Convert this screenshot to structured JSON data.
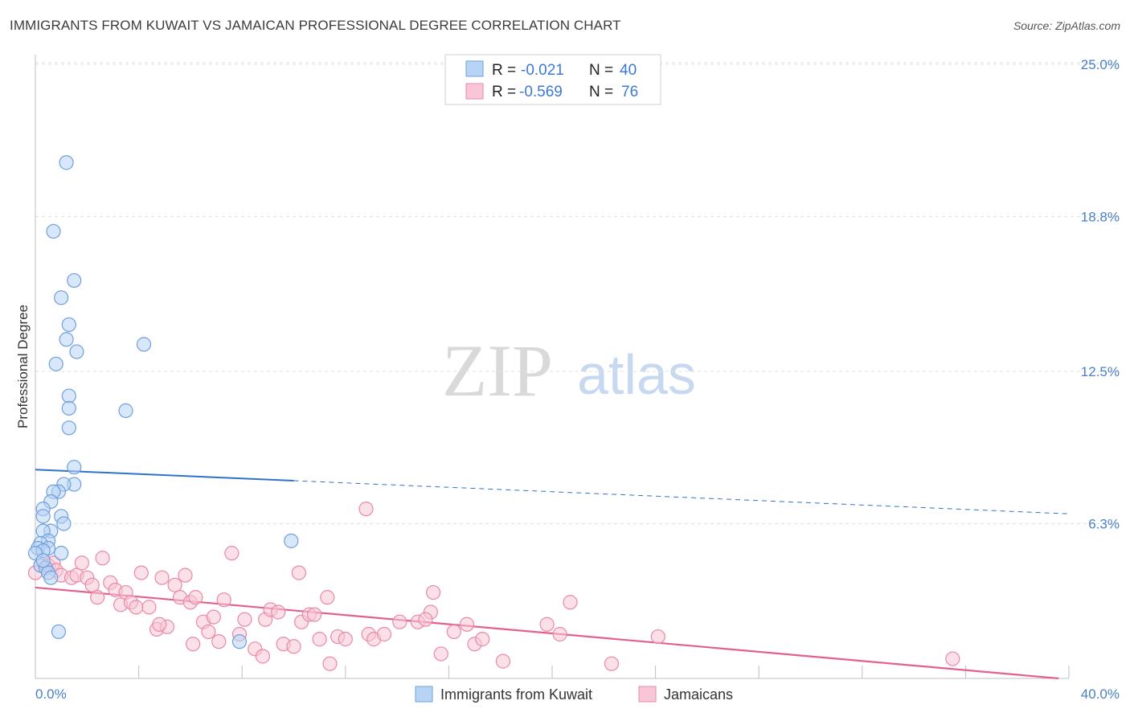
{
  "title": "IMMIGRANTS FROM KUWAIT VS JAMAICAN PROFESSIONAL DEGREE CORRELATION CHART",
  "source": "Source: ZipAtlas.com",
  "watermark": {
    "zip": "ZIP",
    "atlas": "atlas"
  },
  "chart_data": {
    "type": "scatter",
    "xlabel": "",
    "ylabel": "Professional Degree",
    "xlim": [
      0,
      40
    ],
    "ylim": [
      0,
      25
    ],
    "x_tick_labels": {
      "min": "0.0%",
      "max": "40.0%"
    },
    "y_ticks": [
      {
        "value": 6.3,
        "label": "6.3%"
      },
      {
        "value": 12.5,
        "label": "12.5%"
      },
      {
        "value": 18.8,
        "label": "18.8%"
      },
      {
        "value": 25.0,
        "label": "25.0%"
      }
    ],
    "grid": true,
    "legend_position": "top-center",
    "colors": {
      "kuwait_fill": "#b8d4f4",
      "kuwait_stroke": "#6fa0dc",
      "kuwait_line": "#2f72cc",
      "jamaica_fill": "#f8c6d6",
      "jamaica_stroke": "#e889a8",
      "jamaica_line": "#e2608e"
    },
    "series": [
      {
        "name": "Immigrants from Kuwait",
        "r_label": "R =",
        "r_value": "-0.021",
        "n_label": "N =",
        "n_value": "40",
        "trend": {
          "x0": 0,
          "y0": 8.5,
          "x1": 10,
          "y1": 8.05,
          "x_dash_end": 40,
          "y_dash_end": 6.7
        },
        "points": [
          [
            1.2,
            21.0
          ],
          [
            0.7,
            18.2
          ],
          [
            1.5,
            16.2
          ],
          [
            1.0,
            15.5
          ],
          [
            1.3,
            14.4
          ],
          [
            1.2,
            13.8
          ],
          [
            4.2,
            13.6
          ],
          [
            1.6,
            13.3
          ],
          [
            0.8,
            12.8
          ],
          [
            1.3,
            11.5
          ],
          [
            1.3,
            11.0
          ],
          [
            3.5,
            10.9
          ],
          [
            1.3,
            10.2
          ],
          [
            1.5,
            8.6
          ],
          [
            1.5,
            7.9
          ],
          [
            1.1,
            7.9
          ],
          [
            0.9,
            7.6
          ],
          [
            0.7,
            7.6
          ],
          [
            0.6,
            7.2
          ],
          [
            0.3,
            6.9
          ],
          [
            0.3,
            6.6
          ],
          [
            1.0,
            6.6
          ],
          [
            1.1,
            6.3
          ],
          [
            0.6,
            6.0
          ],
          [
            0.3,
            6.0
          ],
          [
            0.5,
            5.6
          ],
          [
            0.2,
            5.5
          ],
          [
            0.1,
            5.3
          ],
          [
            0.5,
            5.3
          ],
          [
            0.3,
            5.2
          ],
          [
            0.0,
            5.1
          ],
          [
            1.0,
            5.1
          ],
          [
            0.2,
            4.6
          ],
          [
            0.4,
            4.5
          ],
          [
            0.5,
            4.3
          ],
          [
            0.6,
            4.1
          ],
          [
            9.9,
            5.6
          ],
          [
            7.9,
            1.5
          ],
          [
            0.9,
            1.9
          ],
          [
            0.3,
            4.8
          ]
        ]
      },
      {
        "name": "Jamaicans",
        "r_label": "R =",
        "r_value": "-0.569",
        "n_label": "N =",
        "n_value": "76",
        "trend": {
          "x0": 0,
          "y0": 3.7,
          "x1": 39.6,
          "y1": 0.0
        },
        "points": [
          [
            0.0,
            4.3
          ],
          [
            0.3,
            4.8
          ],
          [
            0.5,
            4.6
          ],
          [
            0.7,
            4.7
          ],
          [
            0.8,
            4.4
          ],
          [
            1.0,
            4.2
          ],
          [
            1.4,
            4.1
          ],
          [
            1.6,
            4.2
          ],
          [
            1.8,
            4.7
          ],
          [
            2.0,
            4.1
          ],
          [
            2.2,
            3.8
          ],
          [
            2.4,
            3.3
          ],
          [
            2.6,
            4.9
          ],
          [
            2.9,
            3.9
          ],
          [
            3.1,
            3.6
          ],
          [
            3.3,
            3.0
          ],
          [
            3.5,
            3.5
          ],
          [
            3.7,
            3.1
          ],
          [
            3.9,
            2.9
          ],
          [
            4.1,
            4.3
          ],
          [
            4.4,
            2.9
          ],
          [
            4.7,
            2.0
          ],
          [
            4.9,
            4.1
          ],
          [
            5.1,
            2.1
          ],
          [
            5.4,
            3.8
          ],
          [
            5.6,
            3.3
          ],
          [
            5.8,
            4.2
          ],
          [
            6.0,
            3.1
          ],
          [
            6.2,
            3.3
          ],
          [
            6.5,
            2.3
          ],
          [
            6.7,
            1.9
          ],
          [
            6.9,
            2.5
          ],
          [
            7.1,
            1.5
          ],
          [
            7.3,
            3.2
          ],
          [
            7.6,
            5.1
          ],
          [
            7.9,
            1.8
          ],
          [
            8.1,
            2.4
          ],
          [
            8.5,
            1.2
          ],
          [
            8.9,
            2.4
          ],
          [
            9.1,
            2.8
          ],
          [
            9.4,
            2.7
          ],
          [
            9.6,
            1.4
          ],
          [
            10.0,
            1.3
          ],
          [
            10.3,
            2.3
          ],
          [
            10.6,
            2.6
          ],
          [
            10.8,
            2.6
          ],
          [
            11.0,
            1.6
          ],
          [
            11.3,
            3.3
          ],
          [
            11.7,
            1.7
          ],
          [
            12.0,
            1.6
          ],
          [
            12.9,
            1.8
          ],
          [
            13.1,
            1.6
          ],
          [
            13.5,
            1.8
          ],
          [
            14.1,
            2.3
          ],
          [
            14.8,
            2.3
          ],
          [
            15.3,
            2.7
          ],
          [
            15.4,
            3.5
          ],
          [
            15.7,
            1.0
          ],
          [
            16.2,
            1.9
          ],
          [
            16.7,
            2.2
          ],
          [
            17.0,
            1.4
          ],
          [
            17.3,
            1.6
          ],
          [
            18.1,
            0.7
          ],
          [
            19.8,
            2.2
          ],
          [
            20.3,
            1.8
          ],
          [
            20.7,
            3.1
          ],
          [
            22.3,
            0.6
          ],
          [
            24.1,
            1.7
          ],
          [
            35.5,
            0.8
          ],
          [
            12.8,
            6.9
          ],
          [
            10.2,
            4.3
          ],
          [
            8.8,
            0.9
          ],
          [
            11.4,
            0.6
          ],
          [
            15.1,
            2.4
          ],
          [
            4.8,
            2.2
          ],
          [
            6.1,
            1.4
          ]
        ]
      }
    ]
  }
}
